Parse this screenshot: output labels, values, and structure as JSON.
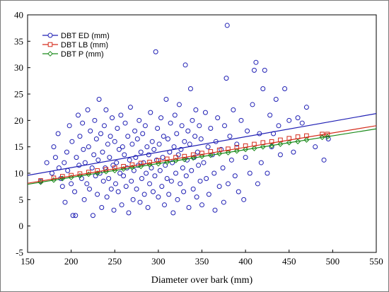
{
  "chart_data": {
    "type": "scatter",
    "title": "",
    "xlabel": "Diameter over bark (mm)",
    "ylabel": "",
    "xlim": [
      150,
      550
    ],
    "ylim": [
      -5,
      40
    ],
    "xticks": [
      150,
      200,
      250,
      300,
      350,
      400,
      450,
      500,
      550
    ],
    "yticks": [
      -5,
      0,
      5,
      10,
      15,
      20,
      25,
      30,
      35,
      40
    ],
    "grid": false,
    "legend_position": "top-left",
    "series": [
      {
        "name": "DBT ED (mm)",
        "color": "#1f1fb4",
        "marker": "circle",
        "fit_line": {
          "x": [
            150,
            550
          ],
          "y": [
            9.6,
            21.3
          ]
        },
        "points": [
          [
            165,
            8.5
          ],
          [
            172,
            12
          ],
          [
            178,
            10
          ],
          [
            180,
            15
          ],
          [
            182,
            13
          ],
          [
            185,
            17.5
          ],
          [
            186,
            11
          ],
          [
            188,
            9
          ],
          [
            190,
            7.5
          ],
          [
            192,
            12
          ],
          [
            193,
            4.5
          ],
          [
            195,
            14
          ],
          [
            196,
            10.5
          ],
          [
            198,
            19
          ],
          [
            200,
            8
          ],
          [
            201,
            16
          ],
          [
            202,
            2
          ],
          [
            204,
            6.5
          ],
          [
            205,
            2
          ],
          [
            206,
            13
          ],
          [
            208,
            21
          ],
          [
            209,
            11.5
          ],
          [
            210,
            17
          ],
          [
            212,
            9
          ],
          [
            213,
            19.5
          ],
          [
            214,
            14.5
          ],
          [
            215,
            5
          ],
          [
            216,
            12
          ],
          [
            218,
            8
          ],
          [
            219,
            22
          ],
          [
            220,
            15
          ],
          [
            221,
            7
          ],
          [
            222,
            18
          ],
          [
            224,
            11
          ],
          [
            225,
            2
          ],
          [
            226,
            13.5
          ],
          [
            227,
            20
          ],
          [
            228,
            9.5
          ],
          [
            229,
            16.5
          ],
          [
            230,
            6
          ],
          [
            231,
            12.5
          ],
          [
            232,
            24
          ],
          [
            233,
            10
          ],
          [
            234,
            17.5
          ],
          [
            235,
            3.5
          ],
          [
            236,
            14
          ],
          [
            237,
            8.5
          ],
          [
            238,
            19
          ],
          [
            239,
            11
          ],
          [
            240,
            22
          ],
          [
            241,
            5.5
          ],
          [
            242,
            15.5
          ],
          [
            243,
            9
          ],
          [
            244,
            13
          ],
          [
            245,
            17
          ],
          [
            246,
            7
          ],
          [
            247,
            20.5
          ],
          [
            248,
            11.5
          ],
          [
            249,
            3
          ],
          [
            250,
            16
          ],
          [
            251,
            8
          ],
          [
            252,
            12
          ],
          [
            253,
            18.5
          ],
          [
            254,
            6.5
          ],
          [
            255,
            14.5
          ],
          [
            256,
            10
          ],
          [
            257,
            21
          ],
          [
            258,
            4
          ],
          [
            259,
            15
          ],
          [
            260,
            9.5
          ],
          [
            261,
            13.5
          ],
          [
            262,
            19.5
          ],
          [
            263,
            7.5
          ],
          [
            264,
            11
          ],
          [
            265,
            17
          ],
          [
            266,
            2.5
          ],
          [
            267,
            12.5
          ],
          [
            268,
            22.5
          ],
          [
            269,
            8.5
          ],
          [
            270,
            15.5
          ],
          [
            271,
            5
          ],
          [
            272,
            10.5
          ],
          [
            273,
            18
          ],
          [
            274,
            13
          ],
          [
            275,
            7
          ],
          [
            276,
            16.5
          ],
          [
            277,
            11.5
          ],
          [
            278,
            20
          ],
          [
            279,
            4.5
          ],
          [
            280,
            14
          ],
          [
            281,
            9
          ],
          [
            282,
            17.5
          ],
          [
            283,
            12
          ],
          [
            284,
            6
          ],
          [
            285,
            19
          ],
          [
            286,
            10
          ],
          [
            287,
            15
          ],
          [
            288,
            3.5
          ],
          [
            289,
            13.5
          ],
          [
            290,
            8
          ],
          [
            291,
            21.5
          ],
          [
            292,
            11
          ],
          [
            293,
            16
          ],
          [
            294,
            6.5
          ],
          [
            295,
            14.5
          ],
          [
            296,
            9.5
          ],
          [
            297,
            33
          ],
          [
            298,
            12.5
          ],
          [
            299,
            18.5
          ],
          [
            300,
            5.5
          ],
          [
            301,
            15.5
          ],
          [
            302,
            10.5
          ],
          [
            303,
            20.5
          ],
          [
            304,
            7.5
          ],
          [
            305,
            13
          ],
          [
            306,
            17
          ],
          [
            307,
            4
          ],
          [
            308,
            11.5
          ],
          [
            309,
            24
          ],
          [
            310,
            9
          ],
          [
            311,
            16.5
          ],
          [
            312,
            6
          ],
          [
            313,
            14
          ],
          [
            314,
            19.5
          ],
          [
            315,
            8.5
          ],
          [
            316,
            12
          ],
          [
            317,
            2.5
          ],
          [
            318,
            15
          ],
          [
            319,
            21
          ],
          [
            320,
            10
          ],
          [
            321,
            17.5
          ],
          [
            322,
            5
          ],
          [
            323,
            13.5
          ],
          [
            324,
            23
          ],
          [
            325,
            8
          ],
          [
            326,
            14.5
          ],
          [
            327,
            19
          ],
          [
            328,
            11
          ],
          [
            329,
            6.5
          ],
          [
            330,
            16
          ],
          [
            331,
            30.5
          ],
          [
            332,
            9.5
          ],
          [
            333,
            12.5
          ],
          [
            334,
            18
          ],
          [
            335,
            3.5
          ],
          [
            336,
            15.5
          ],
          [
            337,
            26
          ],
          [
            338,
            10.5
          ],
          [
            339,
            20
          ],
          [
            340,
            7
          ],
          [
            341,
            13
          ],
          [
            342,
            17
          ],
          [
            343,
            22
          ],
          [
            344,
            5.5
          ],
          [
            345,
            14
          ],
          [
            346,
            11.5
          ],
          [
            347,
            19
          ],
          [
            348,
            8.5
          ],
          [
            349,
            16.5
          ],
          [
            350,
            4
          ],
          [
            352,
            12
          ],
          [
            354,
            21.5
          ],
          [
            355,
            9
          ],
          [
            357,
            15
          ],
          [
            358,
            6
          ],
          [
            360,
            18.5
          ],
          [
            362,
            13.5
          ],
          [
            364,
            10
          ],
          [
            365,
            3
          ],
          [
            366,
            16
          ],
          [
            368,
            20.5
          ],
          [
            370,
            7.5
          ],
          [
            372,
            14.5
          ],
          [
            374,
            11
          ],
          [
            375,
            4.5
          ],
          [
            376,
            19
          ],
          [
            378,
            28
          ],
          [
            379,
            38
          ],
          [
            380,
            8
          ],
          [
            382,
            17
          ],
          [
            384,
            12.5
          ],
          [
            386,
            22
          ],
          [
            388,
            9.5
          ],
          [
            390,
            15.5
          ],
          [
            392,
            6.5
          ],
          [
            395,
            20
          ],
          [
            398,
            5
          ],
          [
            400,
            13
          ],
          [
            402,
            18
          ],
          [
            405,
            10
          ],
          [
            408,
            23
          ],
          [
            410,
            29.5
          ],
          [
            412,
            31
          ],
          [
            414,
            8
          ],
          [
            416,
            17.5
          ],
          [
            418,
            12
          ],
          [
            420,
            26
          ],
          [
            422,
            29.5
          ],
          [
            425,
            10
          ],
          [
            428,
            21
          ],
          [
            430,
            15
          ],
          [
            432,
            17.5
          ],
          [
            435,
            24
          ],
          [
            438,
            19
          ],
          [
            440,
            13.5
          ],
          [
            445,
            26
          ],
          [
            450,
            20
          ],
          [
            455,
            14
          ],
          [
            460,
            20.5
          ],
          [
            465,
            19.5
          ],
          [
            470,
            22.5
          ],
          [
            480,
            15
          ],
          [
            490,
            12.5
          ],
          [
            495,
            16.5
          ]
        ]
      },
      {
        "name": "DBT LB (mm)",
        "color": "#d42a1a",
        "marker": "square",
        "fit_line": {
          "x": [
            150,
            550
          ],
          "y": [
            8.1,
            19.0
          ]
        },
        "points": [
          [
            165,
            8.6
          ],
          [
            180,
            9.1
          ],
          [
            190,
            9.4
          ],
          [
            200,
            9.6
          ],
          [
            210,
            9.9
          ],
          [
            220,
            10.2
          ],
          [
            230,
            10.5
          ],
          [
            240,
            10.7
          ],
          [
            250,
            11.0
          ],
          [
            260,
            11.3
          ],
          [
            270,
            11.6
          ],
          [
            280,
            11.9
          ],
          [
            290,
            12.1
          ],
          [
            300,
            12.4
          ],
          [
            310,
            12.7
          ],
          [
            320,
            13.0
          ],
          [
            330,
            13.2
          ],
          [
            340,
            13.5
          ],
          [
            350,
            13.8
          ],
          [
            360,
            14.1
          ],
          [
            370,
            14.4
          ],
          [
            380,
            14.6
          ],
          [
            390,
            14.9
          ],
          [
            400,
            15.2
          ],
          [
            410,
            15.5
          ],
          [
            420,
            15.8
          ],
          [
            430,
            16.0
          ],
          [
            440,
            16.3
          ],
          [
            450,
            16.6
          ],
          [
            460,
            16.9
          ],
          [
            470,
            17.1
          ],
          [
            488,
            17.4
          ],
          [
            494,
            17.4
          ]
        ]
      },
      {
        "name": "DBT P (mm)",
        "color": "#1a8a1a",
        "marker": "diamond",
        "fit_line": {
          "x": [
            150,
            550
          ],
          "y": [
            7.9,
            18.4
          ]
        },
        "points": [
          [
            165,
            8.3
          ],
          [
            180,
            8.7
          ],
          [
            190,
            9.0
          ],
          [
            200,
            9.2
          ],
          [
            210,
            9.5
          ],
          [
            220,
            9.8
          ],
          [
            230,
            10.0
          ],
          [
            240,
            10.3
          ],
          [
            250,
            10.5
          ],
          [
            260,
            10.8
          ],
          [
            270,
            11.1
          ],
          [
            280,
            11.3
          ],
          [
            290,
            11.6
          ],
          [
            300,
            11.8
          ],
          [
            310,
            12.1
          ],
          [
            320,
            12.4
          ],
          [
            330,
            12.6
          ],
          [
            340,
            12.9
          ],
          [
            350,
            13.2
          ],
          [
            360,
            13.4
          ],
          [
            370,
            13.7
          ],
          [
            380,
            13.9
          ],
          [
            390,
            14.2
          ],
          [
            400,
            14.5
          ],
          [
            410,
            14.7
          ],
          [
            420,
            15.0
          ],
          [
            430,
            15.2
          ],
          [
            440,
            15.5
          ],
          [
            450,
            15.8
          ],
          [
            460,
            16.0
          ],
          [
            470,
            16.3
          ],
          [
            488,
            16.8
          ],
          [
            494,
            16.9
          ]
        ]
      }
    ]
  }
}
